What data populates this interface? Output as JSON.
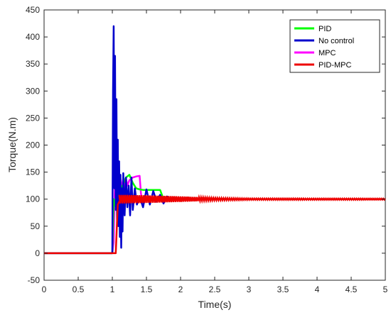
{
  "chart_data": {
    "type": "line",
    "title": "",
    "xlabel": "Time(s)",
    "ylabel": "Torque(N.m)",
    "xlim": [
      0,
      5
    ],
    "ylim": [
      -50,
      450
    ],
    "xticks": [
      "0",
      "0.5",
      "1",
      "1.5",
      "2",
      "2.5",
      "3",
      "3.5",
      "4",
      "4.5",
      "5"
    ],
    "xtick_values": [
      0,
      0.5,
      1,
      1.5,
      2,
      2.5,
      3,
      3.5,
      4,
      4.5,
      5
    ],
    "yticks": [
      "-50",
      "0",
      "50",
      "100",
      "150",
      "200",
      "250",
      "300",
      "350",
      "400",
      "450"
    ],
    "ytick_values": [
      -50,
      0,
      50,
      100,
      150,
      200,
      250,
      300,
      350,
      400,
      450
    ],
    "grid": false,
    "legend_position": "top-right",
    "series": [
      {
        "name": "PID",
        "color": "#00ff00",
        "x": [
          0,
          1.0,
          1.02,
          1.04,
          1.06,
          1.08,
          1.1,
          1.15,
          1.2,
          1.25,
          1.3,
          1.35,
          1.4,
          1.45,
          1.5,
          1.55,
          1.6,
          1.65,
          1.7,
          1.75,
          1.8,
          2.0,
          2.5,
          3.0,
          3.5,
          4.0,
          4.5,
          5.0
        ],
        "y": [
          0,
          0,
          100,
          90,
          80,
          100,
          110,
          125,
          140,
          145,
          130,
          120,
          118,
          117,
          117,
          117,
          117,
          117,
          117,
          100,
          100,
          100,
          100,
          100,
          100,
          100,
          100,
          100
        ]
      },
      {
        "name": "No control",
        "color": "#0000cc",
        "x": [
          0,
          1.0,
          1.01,
          1.02,
          1.03,
          1.04,
          1.05,
          1.06,
          1.07,
          1.08,
          1.09,
          1.1,
          1.11,
          1.12,
          1.13,
          1.14,
          1.15,
          1.16,
          1.18,
          1.2,
          1.22,
          1.24,
          1.26,
          1.28,
          1.3,
          1.33,
          1.36,
          1.4,
          1.45,
          1.5,
          1.55,
          1.6,
          1.65,
          1.7,
          1.75,
          1.8,
          1.85,
          1.9,
          1.95,
          2.0,
          2.5,
          3.0,
          3.5,
          4.0,
          4.5,
          5.0
        ],
        "y": [
          0,
          0,
          300,
          420,
          120,
          365,
          80,
          285,
          55,
          210,
          50,
          170,
          30,
          145,
          10,
          120,
          40,
          148,
          70,
          140,
          85,
          125,
          70,
          140,
          80,
          120,
          90,
          105,
          85,
          118,
          90,
          115,
          95,
          108,
          92,
          105,
          98,
          102,
          99,
          100,
          100,
          100,
          100,
          100,
          100,
          100
        ]
      },
      {
        "name": "MPC",
        "color": "#ff00ff",
        "x": [
          0,
          1.0,
          1.02,
          1.04,
          1.06,
          1.08,
          1.1,
          1.12,
          1.14,
          1.16,
          1.18,
          1.2,
          1.22,
          1.25,
          1.3,
          1.35,
          1.4,
          1.42,
          1.45,
          1.5,
          1.55,
          1.6,
          1.65,
          1.7,
          1.8,
          2.0,
          2.5,
          3.0,
          3.5,
          4.0,
          4.5,
          5.0
        ],
        "y": [
          0,
          0,
          20,
          140,
          105,
          140,
          110,
          138,
          115,
          140,
          120,
          138,
          125,
          135,
          140,
          142,
          143,
          110,
          95,
          100,
          105,
          98,
          102,
          100,
          100,
          100,
          100,
          100,
          100,
          100,
          100,
          100
        ]
      },
      {
        "name": "PID-MPC",
        "color": "#ee0000",
        "x": [
          0,
          1.0,
          1.05,
          1.08,
          1.1,
          1.15,
          1.2,
          1.3,
          1.4,
          1.5,
          1.6,
          1.7,
          1.8,
          1.9,
          2.0,
          2.1,
          2.2,
          2.3,
          2.5,
          2.7,
          3.0,
          3.5,
          4.0,
          4.5,
          5.0
        ],
        "y": [
          0,
          0,
          0,
          90,
          95,
          103,
          97,
          104,
          96,
          104,
          97,
          104,
          97,
          103,
          97,
          103,
          98,
          102,
          101,
          100,
          100,
          100,
          100,
          100,
          100
        ],
        "band": [
          [
            1.1,
            8
          ],
          [
            1.5,
            7
          ],
          [
            2.0,
            5
          ],
          [
            2.5,
            2.5
          ],
          [
            3.0,
            1.5
          ],
          [
            5.0,
            1.2
          ]
        ]
      }
    ]
  }
}
